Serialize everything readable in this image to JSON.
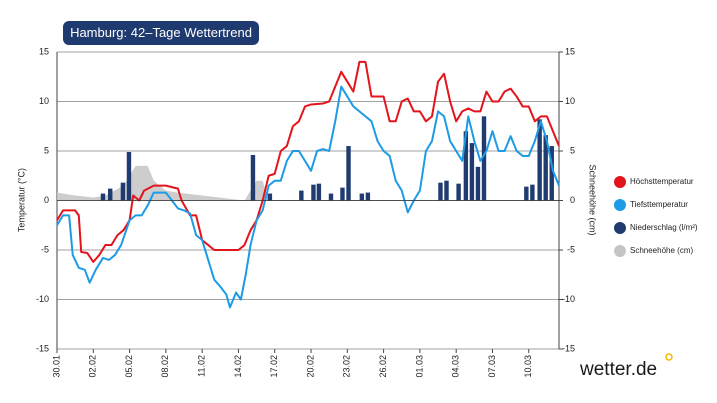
{
  "chart_data": {
    "type": "line",
    "title": "Hamburg: 42–Tage Wettertrend",
    "ylabel": "Temperatur (°C)",
    "y2label": "Schneehöhe (cm)",
    "brand": "wetter.de",
    "xlim": [
      0,
      41.5
    ],
    "xticks": [
      {
        "value": 0,
        "label": "30.01"
      },
      {
        "value": 3,
        "label": "02.02"
      },
      {
        "value": 6,
        "label": "05.02"
      },
      {
        "value": 9,
        "label": "08.02"
      },
      {
        "value": 12,
        "label": "11.02"
      },
      {
        "value": 15,
        "label": "14.02"
      },
      {
        "value": 18,
        "label": "17.02"
      },
      {
        "value": 21,
        "label": "20.02"
      },
      {
        "value": 24,
        "label": "23.02"
      },
      {
        "value": 27,
        "label": "26.02"
      },
      {
        "value": 30,
        "label": "01.03"
      },
      {
        "value": 33,
        "label": "04.03"
      },
      {
        "value": 36,
        "label": "07.03"
      },
      {
        "value": 39,
        "label": "10.03"
      }
    ],
    "ylim": [
      -15,
      15
    ],
    "yticks": [
      -15,
      -10,
      -5,
      0,
      5,
      10,
      15
    ],
    "y2lim": [
      -15,
      15
    ],
    "y2ticks": [
      -15,
      -10,
      -5,
      0,
      5,
      10,
      15
    ],
    "grid": true,
    "series": [
      {
        "name": "Schneehöhe (cm)",
        "kind": "area",
        "color": "#c4c4c4",
        "axis": "y2",
        "x": [
          0,
          1.5,
          3,
          4,
          5.5,
          6.5,
          7.5,
          8,
          9,
          10,
          12,
          15.5,
          16.5,
          17,
          17.5,
          41.5
        ],
        "values": [
          0.8,
          0.5,
          0.3,
          0.5,
          1.5,
          3.5,
          3.5,
          2,
          1,
          0.8,
          0.5,
          0,
          2,
          2,
          0,
          0
        ]
      },
      {
        "name": "Niederschlag (l/m²)",
        "kind": "bar",
        "color": "#1f3b6f",
        "x": [
          3.8,
          4.4,
          5.45,
          5.95,
          16.2,
          17.6,
          20.2,
          21.2,
          21.65,
          22.65,
          23.6,
          24.1,
          25.2,
          25.7,
          31.7,
          32.2,
          33.2,
          33.8,
          34.3,
          34.8,
          35.3,
          38.8,
          39.3,
          39.9,
          40.4,
          40.9
        ],
        "values": [
          0.7,
          1.2,
          1.8,
          4.9,
          4.6,
          0.7,
          1.0,
          1.6,
          1.7,
          0.7,
          1.3,
          5.5,
          0.7,
          0.8,
          1.8,
          2.0,
          1.7,
          7.0,
          5.8,
          3.4,
          8.5,
          1.4,
          1.6,
          8.2,
          6.6,
          5.5
        ]
      },
      {
        "name": "Höchsttemperatur",
        "kind": "line",
        "color": "#e3141b",
        "x": [
          0,
          0.5,
          1.5,
          1.8,
          2,
          2.5,
          3,
          3.5,
          4,
          4.5,
          5,
          5.5,
          6,
          6.3,
          6.8,
          7.2,
          8,
          9,
          10,
          10.3,
          11,
          11.5,
          12,
          12.5,
          13,
          14,
          15,
          15.5,
          16,
          16.5,
          17,
          17.5,
          18,
          18.5,
          19,
          19.5,
          20,
          20.5,
          21,
          22,
          22.5,
          23,
          23.5,
          24,
          24.5,
          25,
          25.5,
          26,
          26.5,
          27,
          27.5,
          28,
          28.5,
          29,
          29.5,
          30,
          30.5,
          31,
          31.5,
          32,
          32.5,
          33,
          33.5,
          34,
          34.5,
          35,
          35.5,
          36,
          36.5,
          37,
          37.5,
          38,
          38.5,
          39,
          39.5,
          40,
          40.5,
          41,
          41.5
        ],
        "values": [
          -2,
          -1,
          -1,
          -1.5,
          -5.2,
          -5.3,
          -6.2,
          -5.5,
          -4.5,
          -4.5,
          -3.5,
          -3,
          -2,
          0.5,
          0,
          1,
          1.5,
          1.5,
          1.2,
          0,
          -1.5,
          -1.5,
          -4,
          -4.5,
          -5,
          -5,
          -5,
          -4.5,
          -3,
          -2,
          0,
          2.5,
          2.7,
          5,
          5.5,
          7.5,
          8,
          9.5,
          9.7,
          9.8,
          10,
          11.5,
          13,
          12,
          11,
          14,
          14,
          10.5,
          10.5,
          10.5,
          8,
          8,
          10,
          10.3,
          9,
          9,
          8,
          8.5,
          12,
          12.8,
          10,
          8,
          9,
          9.3,
          9,
          9,
          11,
          10,
          10,
          11,
          11.3,
          10.5,
          9.5,
          9.5,
          8,
          8.5,
          8.5,
          7,
          5.5
        ]
      },
      {
        "name": "Tiefsttemperatur",
        "kind": "line",
        "color": "#1d9be6",
        "x": [
          0,
          0.5,
          1,
          1.3,
          1.8,
          2.3,
          2.7,
          3.2,
          3.8,
          4.3,
          4.8,
          5.3,
          6,
          6.5,
          7,
          7.5,
          8,
          9,
          9.5,
          10,
          10.5,
          11,
          11.5,
          12,
          12.5,
          13,
          13.5,
          14,
          14.3,
          14.8,
          15.2,
          15.6,
          16,
          16.5,
          17,
          17.5,
          18,
          18.5,
          19,
          19.5,
          20,
          20.5,
          21,
          21.5,
          22,
          22.5,
          23,
          23.5,
          24,
          24.5,
          25,
          25.5,
          26,
          26.5,
          27,
          27.5,
          28,
          28.5,
          29,
          29.5,
          30,
          30.5,
          31,
          31.5,
          32,
          32.5,
          33,
          33.5,
          34,
          34.5,
          35,
          35.5,
          36,
          36.5,
          37,
          37.5,
          38,
          38.5,
          39,
          39.5,
          40,
          40.5,
          41,
          41.5
        ],
        "values": [
          -2.5,
          -1.5,
          -1.5,
          -5.5,
          -6.8,
          -7,
          -8.3,
          -7,
          -5.8,
          -6,
          -5.5,
          -4.5,
          -2,
          -1.5,
          -1.5,
          -0.5,
          0.8,
          0.8,
          0,
          -0.8,
          -1,
          -1.3,
          -3.5,
          -4,
          -6,
          -8,
          -8.7,
          -9.5,
          -10.8,
          -9.3,
          -10,
          -7.5,
          -4.5,
          -2,
          -1,
          1.5,
          2,
          2,
          4,
          5,
          5,
          4,
          3,
          5,
          5.2,
          5,
          8,
          11.5,
          10.5,
          9.5,
          9,
          8.5,
          8,
          6,
          5,
          4.5,
          2,
          1,
          -1.2,
          0,
          1,
          5,
          6,
          9,
          8.5,
          6,
          5,
          4,
          8.5,
          6,
          4,
          5,
          7,
          5,
          5,
          6.5,
          5,
          4.5,
          4.5,
          6,
          8,
          6,
          3,
          1.5
        ]
      }
    ]
  }
}
